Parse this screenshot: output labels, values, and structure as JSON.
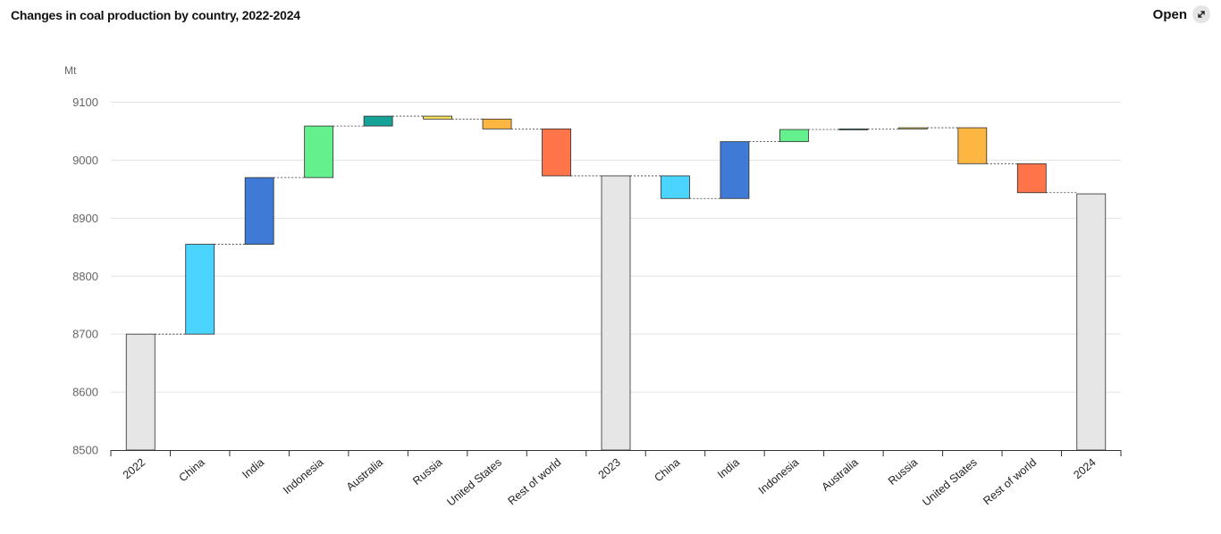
{
  "header": {
    "title": "Changes in coal production by country, 2022-2024",
    "open_label": "Open"
  },
  "icons": {
    "open": "expand-arrows-icon"
  },
  "chart_data": {
    "type": "waterfall",
    "title": "Changes in coal production by country, 2022-2024",
    "ylabel": "Mt",
    "ylim": [
      8500,
      9100
    ],
    "yticks": [
      8500,
      8600,
      8700,
      8800,
      8900,
      9000,
      9100
    ],
    "grid": true,
    "categories": [
      "2022",
      "China",
      "India",
      "Indonesia",
      "Australia",
      "Russia",
      "United States",
      "Rest of world",
      "2023",
      "China",
      "India",
      "Indonesia",
      "Australia",
      "Russia",
      "United States",
      "Rest of world",
      "2024"
    ],
    "bars": [
      {
        "label": "2022",
        "kind": "total",
        "value": 8700,
        "color": "#e6e6e6"
      },
      {
        "label": "China",
        "kind": "delta",
        "value": 155,
        "color": "#4ad4ff"
      },
      {
        "label": "India",
        "kind": "delta",
        "value": 115,
        "color": "#3e7ad6"
      },
      {
        "label": "Indonesia",
        "kind": "delta",
        "value": 89,
        "color": "#65f08e"
      },
      {
        "label": "Australia",
        "kind": "delta",
        "value": 17,
        "color": "#14a396"
      },
      {
        "label": "Russia",
        "kind": "delta",
        "value": -5,
        "color": "#f8e45a"
      },
      {
        "label": "United States",
        "kind": "delta",
        "value": -17,
        "color": "#fdb642"
      },
      {
        "label": "Rest of world",
        "kind": "delta",
        "value": -81,
        "color": "#ff7448"
      },
      {
        "label": "2023",
        "kind": "total",
        "value": 8973,
        "color": "#e6e6e6"
      },
      {
        "label": "China",
        "kind": "delta",
        "value": -39,
        "color": "#4ad4ff"
      },
      {
        "label": "India",
        "kind": "delta",
        "value": 98,
        "color": "#3e7ad6"
      },
      {
        "label": "Indonesia",
        "kind": "delta",
        "value": 21,
        "color": "#65f08e"
      },
      {
        "label": "Australia",
        "kind": "delta",
        "value": 1,
        "color": "#14a396"
      },
      {
        "label": "Russia",
        "kind": "delta",
        "value": 2,
        "color": "#f8e45a"
      },
      {
        "label": "United States",
        "kind": "delta",
        "value": -62,
        "color": "#fdb642"
      },
      {
        "label": "Rest of world",
        "kind": "delta",
        "value": -50,
        "color": "#ff7448"
      },
      {
        "label": "2024",
        "kind": "total",
        "value": 8942,
        "color": "#e6e6e6"
      }
    ]
  }
}
